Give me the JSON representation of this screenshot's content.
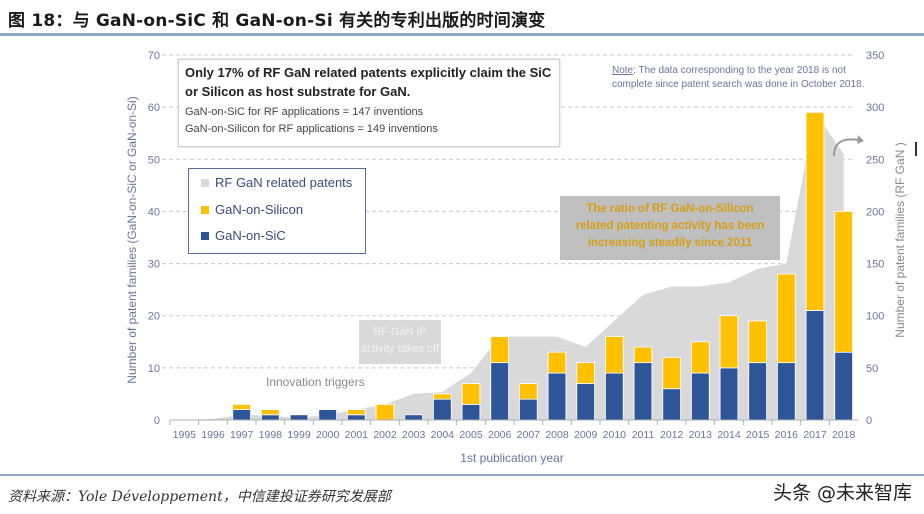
{
  "header": {
    "title": "图 18：与 GaN-on-SiC 和 GaN-on-Si 有关的专利出版的时间演变"
  },
  "footer": {
    "source": "资料来源：Yole Développement，中信建投证券研究发展部",
    "watermark": "头条 @未来智库"
  },
  "annotations": {
    "headline_box": {
      "line1": "Only 17% of RF GaN related patents explicitly claim the SiC",
      "line2": "or Silicon as host substrate for GaN.",
      "line3": "GaN-on-SiC for RF applications = 147 inventions",
      "line4": "GaN-on-Silicon for RF applications = 149 inventions"
    },
    "note": {
      "label": "Note",
      "line1": ": The data corresponding to the year 2018 is not",
      "line2": "complete since patent search was done in October 2018."
    },
    "ratio_box": {
      "line1": "The ratio of RF GaN-on-Silicon",
      "line2": "related patenting activity has been",
      "line3": "increasing steadily since 2011"
    },
    "takeoff_box": {
      "line1": "RF GaN IP",
      "line2": "activity takes off"
    },
    "innovation": "Innovation triggers"
  },
  "legend": {
    "items": [
      {
        "label": "RF GaN related patents",
        "color": "#d9d9d9"
      },
      {
        "label": "GaN-on-Silicon",
        "color": "#ffc000"
      },
      {
        "label": "GaN-on-SiC",
        "color": "#2e5597"
      }
    ]
  },
  "colors": {
    "sic": "#2e5597",
    "silicon": "#ffc000",
    "rf_area": "#d9d9d9",
    "axis_text": "#6a75a0",
    "ratio_text": "#d4a017"
  },
  "chart_data": {
    "type": "bar",
    "title": "",
    "xlabel": "1st publication year",
    "ylabel": "Number of patent families (GaN-on-SiC or GaN-on-Si)",
    "y2label": "Number of patent families (RF GaN )",
    "ylim": [
      0,
      70
    ],
    "y2lim": [
      0,
      350
    ],
    "yticks": [
      0,
      10,
      20,
      30,
      40,
      50,
      60,
      70
    ],
    "y2ticks": [
      0,
      50,
      100,
      150,
      200,
      250,
      300,
      350
    ],
    "grid": true,
    "legend_position": "upper-left",
    "stacked": true,
    "categories": [
      "1995",
      "1996",
      "1997",
      "1998",
      "1999",
      "2000",
      "2001",
      "2002",
      "2003",
      "2004",
      "2005",
      "2006",
      "2007",
      "2008",
      "2009",
      "2010",
      "2011",
      "2012",
      "2013",
      "2014",
      "2015",
      "2016",
      "2017",
      "2018"
    ],
    "series": [
      {
        "name": "GaN-on-SiC",
        "type": "bar",
        "axis": "left",
        "values": [
          0,
          0,
          2,
          1,
          1,
          2,
          1,
          0,
          1,
          4,
          3,
          11,
          4,
          9,
          7,
          9,
          11,
          6,
          9,
          10,
          11,
          11,
          21,
          13
        ]
      },
      {
        "name": "GaN-on-Silicon",
        "type": "bar",
        "axis": "left",
        "values": [
          0,
          0,
          1,
          1,
          0,
          0,
          1,
          3,
          0,
          1,
          4,
          5,
          3,
          4,
          4,
          7,
          3,
          6,
          6,
          10,
          8,
          17,
          38,
          27
        ]
      },
      {
        "name": "RF GaN related patents",
        "type": "area",
        "axis": "right",
        "values": [
          0,
          1,
          5,
          4,
          2,
          5,
          10,
          15,
          25,
          27,
          45,
          80,
          80,
          80,
          70,
          95,
          120,
          128,
          128,
          132,
          145,
          150,
          295,
          255
        ]
      }
    ]
  }
}
